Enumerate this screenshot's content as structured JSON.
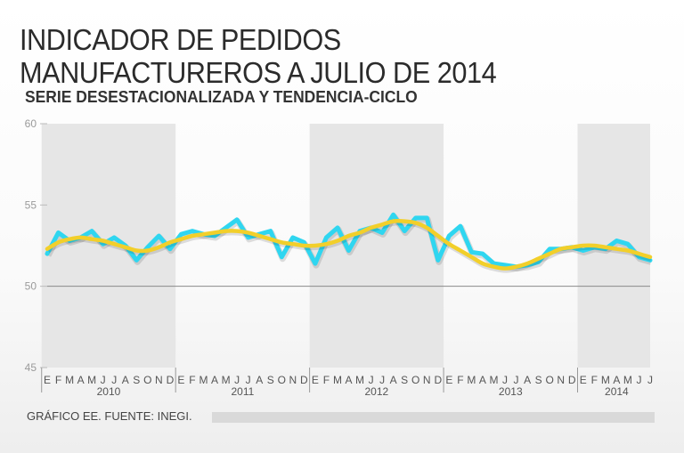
{
  "header": {
    "title_line1": "INDICADOR DE PEDIDOS",
    "title_line2": "MANUFACTUREROS A JULIO DE 2014",
    "subtitle": "SERIE DESESTACIONALIZADA Y TENDENCIA-CICLO"
  },
  "footer": {
    "source": "GRÁFICO EE. FUENTE: INEGI."
  },
  "colors": {
    "series": "#2fd6f0",
    "trend": "#f2cf2a",
    "band": "#e6e6e6",
    "refline": "#8a8a8a"
  },
  "chart_data": {
    "type": "line",
    "title": "INDICADOR DE PEDIDOS MANUFACTUREROS A JULIO DE 2014",
    "subtitle": "SERIE DESESTACIONALIZADA Y TENDENCIA-CICLO",
    "ylim": [
      45,
      60
    ],
    "yticks": [
      45,
      50,
      55,
      60
    ],
    "reference_line": 50,
    "month_labels": [
      "E",
      "F",
      "M",
      "A",
      "M",
      "J",
      "J",
      "A",
      "S",
      "O",
      "N",
      "D",
      "E",
      "F",
      "M",
      "A",
      "M",
      "J",
      "J",
      "A",
      "S",
      "O",
      "N",
      "D",
      "E",
      "F",
      "M",
      "A",
      "M",
      "J",
      "J",
      "A",
      "S",
      "O",
      "N",
      "D",
      "E",
      "F",
      "M",
      "A",
      "M",
      "J",
      "J",
      "A",
      "S",
      "O",
      "N",
      "D",
      "E",
      "F",
      "M",
      "A",
      "M",
      "J",
      "J"
    ],
    "years": [
      "2010",
      "2011",
      "2012",
      "2013",
      "2014"
    ],
    "series": [
      {
        "name": "Serie desestacionalizada",
        "values": [
          52.0,
          53.3,
          52.8,
          53.0,
          53.4,
          52.6,
          53.0,
          52.5,
          51.6,
          52.4,
          53.1,
          52.3,
          53.2,
          53.4,
          53.2,
          53.1,
          53.6,
          54.1,
          53.0,
          53.2,
          53.4,
          51.8,
          53.0,
          52.7,
          51.4,
          53.0,
          53.6,
          52.2,
          53.4,
          53.6,
          53.3,
          54.4,
          53.4,
          54.2,
          54.2,
          51.6,
          53.1,
          53.7,
          52.1,
          52.0,
          51.4,
          51.3,
          51.2,
          51.3,
          51.5,
          52.3,
          52.3,
          52.4,
          52.2,
          52.4,
          52.3,
          52.8,
          52.6,
          51.8,
          51.6
        ]
      },
      {
        "name": "Tendencia-ciclo",
        "values": [
          52.3,
          52.7,
          52.9,
          53.0,
          52.9,
          52.8,
          52.6,
          52.4,
          52.2,
          52.2,
          52.4,
          52.7,
          52.9,
          53.1,
          53.2,
          53.3,
          53.4,
          53.4,
          53.3,
          53.1,
          52.9,
          52.7,
          52.6,
          52.5,
          52.5,
          52.6,
          52.8,
          53.1,
          53.3,
          53.6,
          53.8,
          54.0,
          54.0,
          53.9,
          53.6,
          53.1,
          52.6,
          52.2,
          51.8,
          51.4,
          51.2,
          51.1,
          51.2,
          51.4,
          51.7,
          52.0,
          52.3,
          52.4,
          52.5,
          52.5,
          52.4,
          52.3,
          52.2,
          52.0,
          51.8
        ]
      }
    ]
  }
}
